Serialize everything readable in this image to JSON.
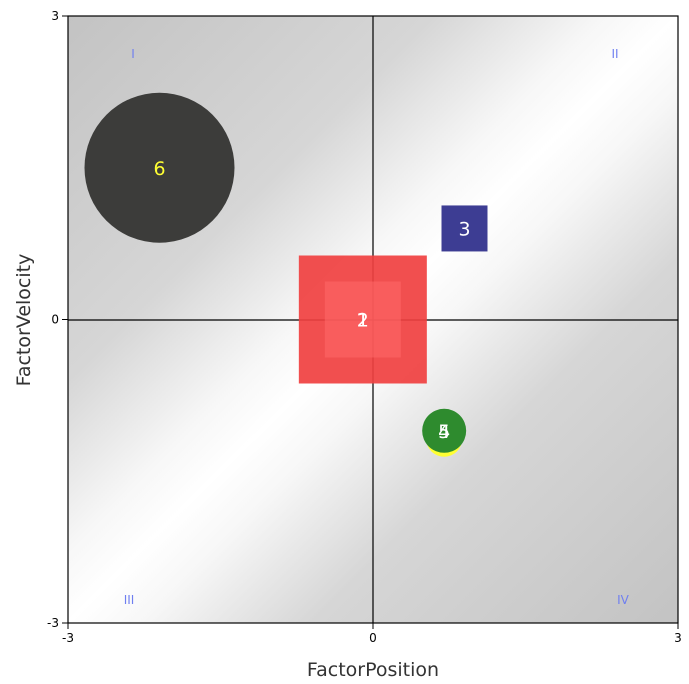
{
  "chart_data": {
    "type": "scatter",
    "xlabel": "FactorPosition",
    "ylabel": "FactorVelocity",
    "xlim": [
      -3,
      3
    ],
    "ylim": [
      -3,
      3
    ],
    "x_ticks": [
      "-3",
      "0",
      "3"
    ],
    "y_ticks": [
      "-3",
      "0",
      "3"
    ],
    "quadrant_labels": [
      "I",
      "II",
      "III",
      "IV"
    ],
    "points": [
      {
        "label": "1",
        "x": -0.1,
        "y": 0.0,
        "shape": "square",
        "color": "#f04040",
        "label_color": "#ffffff"
      },
      {
        "label": "2",
        "x": -0.1,
        "y": 0.0,
        "shape": "square",
        "color": "#ff6a6a",
        "label_color": "#ffffff"
      },
      {
        "label": "3",
        "x": 0.9,
        "y": 0.9,
        "shape": "square",
        "color": "#2d2d8a",
        "label_color": "#ffffff"
      },
      {
        "label": "4",
        "x": 0.7,
        "y": -1.1,
        "shape": "circle",
        "color": "#ffff33",
        "label_color": "#ffffff"
      },
      {
        "label": "5",
        "x": 0.7,
        "y": -1.1,
        "shape": "circle",
        "color": "#2e8b2e",
        "label_color": "#ffffff"
      },
      {
        "label": "6",
        "x": -2.1,
        "y": 1.5,
        "shape": "circle",
        "color": "#3c3c3a",
        "label_color": "#ffff33"
      }
    ]
  }
}
